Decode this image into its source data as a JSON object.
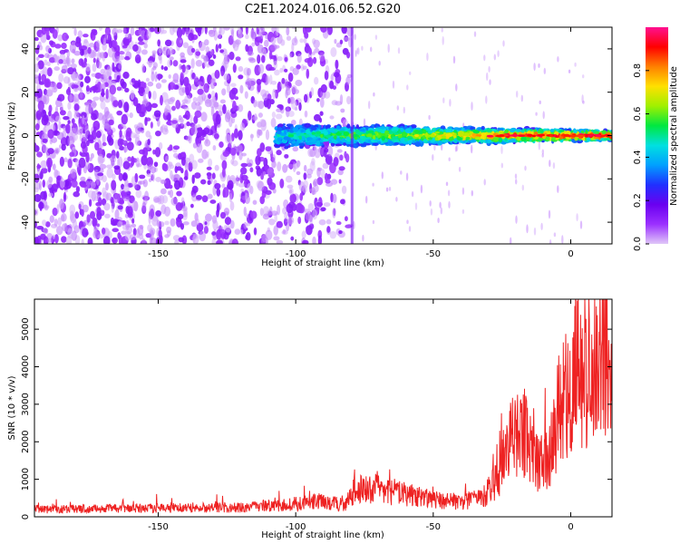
{
  "figure": {
    "title": "C2E1.2024.016.06.52.G20"
  },
  "chart_data": [
    {
      "type": "heatmap",
      "xlabel": "Height of straight line (km)",
      "ylabel": "Frequency (Hz)",
      "xlim": [
        -195,
        15
      ],
      "ylim": [
        -50,
        50
      ],
      "xticks": [
        -150,
        -100,
        -50,
        0
      ],
      "yticks": [
        -40,
        -20,
        0,
        20,
        40
      ],
      "grid": false,
      "colorbar": {
        "label": "Normalized spectral amplitude",
        "range": [
          0,
          1
        ],
        "ticks": [
          0.0,
          0.2,
          0.4,
          0.6,
          0.8
        ],
        "colors": [
          "#e0c8f8",
          "#9b30ff",
          "#6a00f0",
          "#2030ff",
          "#00a0ff",
          "#00e0e0",
          "#00e840",
          "#a0f000",
          "#ffe000",
          "#ff8000",
          "#ff0000",
          "#ff1090"
        ]
      },
      "features": {
        "noise_region_km": [
          -195,
          -80
        ],
        "signal_band_km": [
          -107,
          15
        ],
        "signal_frequency_hz": 0,
        "signal_halfwidth_hz": [
          5,
          2
        ]
      }
    },
    {
      "type": "line",
      "xlabel": "Height of straight line (km)",
      "ylabel": "SNR (10 * v/v)",
      "xlim": [
        -195,
        15
      ],
      "ylim": [
        0,
        5800
      ],
      "xticks": [
        -150,
        -100,
        -50,
        0
      ],
      "yticks": [
        0,
        1000,
        2000,
        3000,
        4000,
        5000
      ],
      "grid": false,
      "series": [
        {
          "color": "#ee2222",
          "x": [
            -195,
            -180,
            -160,
            -140,
            -120,
            -105,
            -100,
            -90,
            -82,
            -79,
            -70,
            -60,
            -50,
            -40,
            -32,
            -27,
            -22,
            -17,
            -12,
            -8,
            -4,
            0,
            5,
            10,
            13,
            15
          ],
          "y": [
            200,
            210,
            230,
            240,
            250,
            300,
            350,
            420,
            300,
            700,
            750,
            600,
            450,
            400,
            500,
            1000,
            2000,
            2300,
            1400,
            1500,
            2900,
            3600,
            3900,
            4000,
            4800,
            3000
          ]
        }
      ]
    }
  ]
}
